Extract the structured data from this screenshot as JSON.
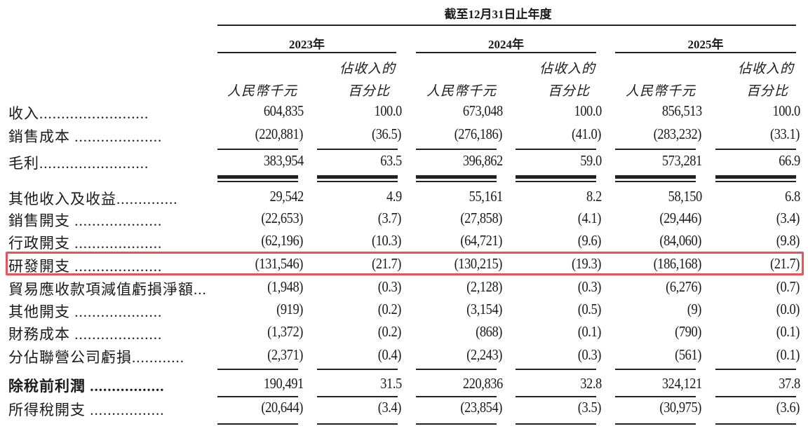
{
  "header": {
    "title": "截至12月31日止年度",
    "years": [
      "2023年",
      "2024年",
      "2025年"
    ],
    "amount_label": "人民幣千元",
    "pct_label_line1": "佔收入的",
    "pct_label_line2": "百分比"
  },
  "highlight_color": "#e8525a",
  "rows": [
    {
      "label": "收入.........................",
      "values": [
        "604,835",
        "100.0",
        "673,048",
        "100.0",
        "856,513",
        "100.0"
      ]
    },
    {
      "label": "銷售成本 ....................",
      "values": [
        "(220,881)",
        "(36.5)",
        "(276,186)",
        "(41.0)",
        "(283,232)",
        "(33.1)"
      ]
    },
    {
      "label": "毛利.........................",
      "values": [
        "383,954",
        "63.5",
        "396,862",
        "59.0",
        "573,281",
        "66.9"
      ]
    },
    {
      "label": "其他收入及收益..............",
      "values": [
        "29,542",
        "4.9",
        "55,161",
        "8.2",
        "58,150",
        "6.8"
      ]
    },
    {
      "label": "銷售開支 ....................",
      "values": [
        "(22,653)",
        "(3.7)",
        "(27,858)",
        "(4.1)",
        "(29,446)",
        "(3.4)"
      ]
    },
    {
      "label": "行政開支 ....................",
      "values": [
        "(62,196)",
        "(10.3)",
        "(64,721)",
        "(9.6)",
        "(84,060)",
        "(9.8)"
      ]
    },
    {
      "label": "研發開支 ....................",
      "values": [
        "(131,546)",
        "(21.7)",
        "(130,215)",
        "(19.3)",
        "(186,168)",
        "(21.7)"
      ],
      "highlighted": true
    },
    {
      "label": "貿易應收款項減值虧損淨額...",
      "values": [
        "(1,948)",
        "(0.3)",
        "(2,128)",
        "(0.3)",
        "(6,276)",
        "(0.7)"
      ]
    },
    {
      "label": "其他開支 ....................",
      "values": [
        "(919)",
        "(0.2)",
        "(3,154)",
        "(0.5)",
        "(9)",
        "(0.0)"
      ]
    },
    {
      "label": "財務成本 ....................",
      "values": [
        "(1,372)",
        "(0.2)",
        "(868)",
        "(0.1)",
        "(790)",
        "(0.1)"
      ]
    },
    {
      "label": "分佔聯營公司虧損............",
      "values": [
        "(2,371)",
        "(0.4)",
        "(2,243)",
        "(0.3)",
        "(561)",
        "(0.1)"
      ]
    },
    {
      "label": "除稅前利潤 .................",
      "values": [
        "190,491",
        "31.5",
        "220,836",
        "32.8",
        "324,121",
        "37.8"
      ],
      "bold": true
    },
    {
      "label": "所得稅開支 .................",
      "values": [
        "(20,644)",
        "(3.4)",
        "(23,854)",
        "(3.5)",
        "(30,975)",
        "(3.6)"
      ]
    }
  ]
}
